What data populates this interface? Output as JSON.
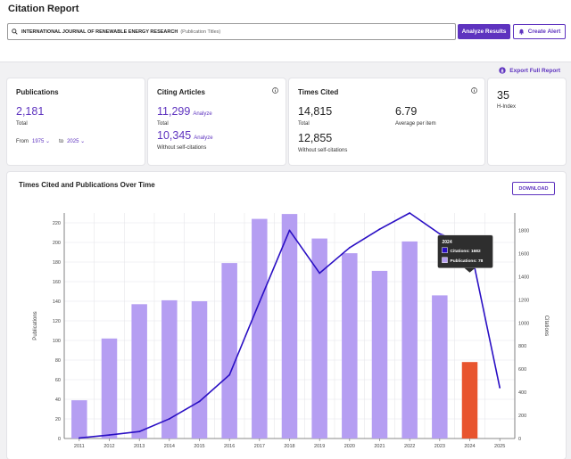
{
  "page": {
    "title": "Citation Report"
  },
  "search": {
    "query": "INTERNATIONAL JOURNAL OF RENEWABLE ENERGY RESEARCH",
    "scope": "(Publication Titles)"
  },
  "actions": {
    "analyze_label": "Analyze Results",
    "alert_label": "Create Alert",
    "export_label": "Export Full Report",
    "download_label": "DOWNLOAD"
  },
  "colors": {
    "accent": "#5e33bf",
    "bar": "#b59ef2",
    "highlight_bar": "#e8542e",
    "line": "#2a0fc4"
  },
  "publications": {
    "title": "Publications",
    "value": "2,181",
    "total_label": "Total",
    "from_label": "From",
    "from_year": "1975",
    "to_label": "to",
    "to_year": "2025"
  },
  "citing": {
    "title": "Citing Articles",
    "total_value": "11,299",
    "total_link": "Analyze",
    "total_label": "Total",
    "without_value": "10,345",
    "without_link": "Analyze",
    "without_label": "Without self-citations"
  },
  "times_cited": {
    "title": "Times Cited",
    "total_value": "14,815",
    "total_label": "Total",
    "avg_value": "6.79",
    "avg_label": "Average per item",
    "without_value": "12,855",
    "without_label": "Without self-citations"
  },
  "h_index": {
    "value": "35",
    "label": "H-Index"
  },
  "chart_data": {
    "type": "bar",
    "title": "Times Cited and Publications Over Time",
    "categories": [
      "2011",
      "2012",
      "2013",
      "2014",
      "2015",
      "2016",
      "2017",
      "2018",
      "2019",
      "2020",
      "2021",
      "2022",
      "2023",
      "2024",
      "2025"
    ],
    "series": [
      {
        "name": "Publications",
        "type": "bar",
        "axis": "left",
        "values": [
          39,
          102,
          137,
          141,
          140,
          179,
          224,
          229,
          204,
          189,
          171,
          201,
          146,
          78,
          0
        ]
      },
      {
        "name": "Citations",
        "type": "line",
        "axis": "right",
        "values": [
          4,
          30,
          60,
          170,
          320,
          550,
          1180,
          1800,
          1430,
          1650,
          1810,
          1950,
          1770,
          1682,
          440
        ]
      }
    ],
    "ylabel_left": "Publications",
    "ylabel_right": "Citations",
    "ylim_left": [
      0,
      230
    ],
    "ylim_right": [
      0,
      1950
    ],
    "yticks_left": [
      0,
      20,
      40,
      60,
      80,
      100,
      120,
      140,
      160,
      180,
      200,
      220
    ],
    "yticks_right": [
      0,
      200,
      400,
      600,
      800,
      1000,
      1200,
      1400,
      1600,
      1800
    ],
    "grid": true,
    "highlight_index": 13,
    "tooltip": {
      "year": "2024",
      "citations_label": "Citations: 1682",
      "publications_label": "Publications: 78"
    }
  }
}
